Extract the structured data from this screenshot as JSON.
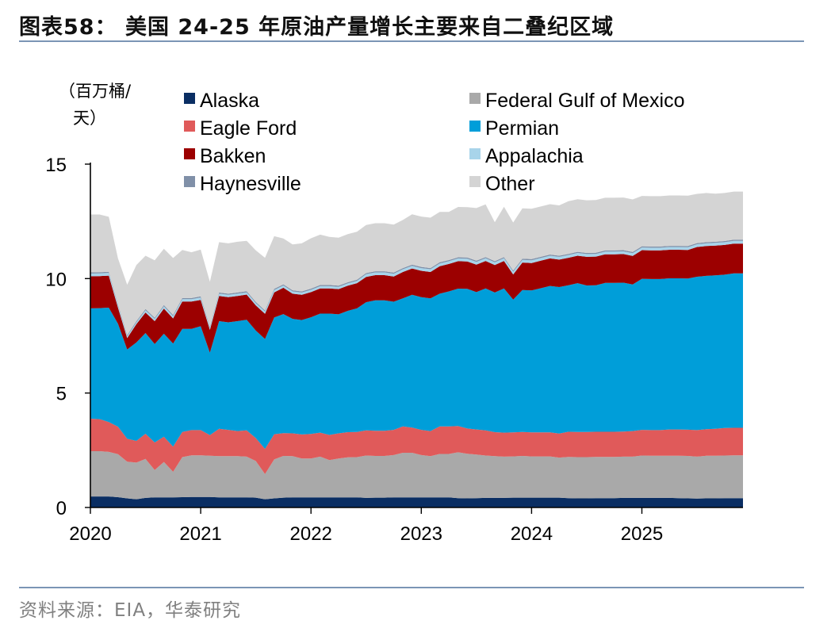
{
  "page": {
    "title": "图表58：  美国 24-25 年原油产量增长主要来自二叠纪区域",
    "source": "资料来源：EIA，华泰研究"
  },
  "chart_data": {
    "type": "area",
    "stacked": true,
    "title": "美国 24-25 年原油产量增长主要来自二叠纪区域",
    "ylabel": "（百万桶/天）",
    "ylabel_lines": [
      "（百万桶/",
      "天）"
    ],
    "xlabel": "",
    "ylim": [
      0,
      15
    ],
    "yticks": [
      0,
      5,
      10,
      15
    ],
    "ytick_labels": [
      "0",
      "5",
      "10",
      "15"
    ],
    "xticks": [
      "2020",
      "2021",
      "2022",
      "2023",
      "2024",
      "2025"
    ],
    "periods": 72,
    "x_start": "2020-01",
    "x_end": "2025-12",
    "legend_position": "top",
    "legend_order": [
      "Alaska",
      "Federal Gulf of Mexico",
      "Eagle Ford",
      "Permian",
      "Bakken",
      "Appalachia",
      "Haynesville",
      "Other"
    ],
    "series": [
      {
        "name": "Alaska",
        "color": "#0a2e63",
        "values": [
          0.48,
          0.48,
          0.48,
          0.45,
          0.4,
          0.36,
          0.42,
          0.44,
          0.44,
          0.44,
          0.45,
          0.46,
          0.46,
          0.46,
          0.44,
          0.44,
          0.44,
          0.44,
          0.43,
          0.36,
          0.4,
          0.43,
          0.44,
          0.44,
          0.44,
          0.44,
          0.44,
          0.44,
          0.44,
          0.44,
          0.42,
          0.43,
          0.43,
          0.44,
          0.44,
          0.44,
          0.44,
          0.44,
          0.44,
          0.44,
          0.41,
          0.4,
          0.41,
          0.42,
          0.42,
          0.42,
          0.43,
          0.43,
          0.43,
          0.43,
          0.43,
          0.43,
          0.41,
          0.4,
          0.4,
          0.41,
          0.41,
          0.41,
          0.42,
          0.42,
          0.42,
          0.42,
          0.42,
          0.42,
          0.41,
          0.4,
          0.39,
          0.4,
          0.4,
          0.41,
          0.41,
          0.41
        ]
      },
      {
        "name": "Federal Gulf of Mexico",
        "color": "#a9a9a9",
        "values": [
          1.98,
          1.98,
          1.95,
          1.88,
          1.6,
          1.6,
          1.7,
          1.2,
          1.55,
          1.12,
          1.75,
          1.82,
          1.82,
          1.8,
          1.8,
          1.8,
          1.8,
          1.78,
          1.6,
          1.1,
          1.7,
          1.82,
          1.8,
          1.7,
          1.7,
          1.78,
          1.63,
          1.7,
          1.75,
          1.76,
          1.85,
          1.82,
          1.82,
          1.85,
          1.95,
          1.95,
          1.85,
          1.8,
          1.9,
          1.9,
          2.0,
          1.95,
          1.9,
          1.85,
          1.82,
          1.8,
          1.8,
          1.82,
          1.8,
          1.8,
          1.8,
          1.75,
          1.8,
          1.8,
          1.8,
          1.8,
          1.8,
          1.8,
          1.8,
          1.8,
          1.85,
          1.84,
          1.84,
          1.84,
          1.85,
          1.85,
          1.83,
          1.86,
          1.86,
          1.86,
          1.87,
          1.87
        ]
      },
      {
        "name": "Eagle Ford",
        "color": "#e05a5a",
        "values": [
          1.42,
          1.4,
          1.3,
          1.2,
          1.0,
          0.95,
          1.1,
          1.2,
          1.1,
          1.1,
          1.1,
          1.1,
          1.1,
          0.9,
          1.2,
          1.15,
          1.1,
          1.15,
          1.0,
          1.1,
          1.1,
          1.0,
          1.0,
          1.05,
          1.07,
          1.05,
          1.1,
          1.1,
          1.1,
          1.1,
          1.1,
          1.1,
          1.1,
          1.1,
          1.15,
          1.1,
          1.1,
          1.1,
          1.2,
          1.2,
          1.15,
          1.1,
          1.1,
          1.1,
          1.05,
          1.05,
          1.05,
          1.05,
          1.05,
          1.05,
          1.05,
          1.05,
          1.1,
          1.1,
          1.1,
          1.1,
          1.1,
          1.1,
          1.1,
          1.12,
          1.12,
          1.12,
          1.12,
          1.15,
          1.15,
          1.15,
          1.16,
          1.16,
          1.18,
          1.2,
          1.2,
          1.2
        ]
      },
      {
        "name": "Permian",
        "color": "#009ed9",
        "values": [
          4.82,
          4.85,
          5.0,
          4.5,
          3.9,
          4.3,
          4.4,
          4.3,
          4.5,
          4.5,
          4.5,
          4.42,
          4.54,
          3.6,
          4.7,
          4.7,
          4.8,
          4.83,
          4.7,
          4.8,
          5.1,
          5.2,
          5.0,
          5.0,
          5.1,
          5.2,
          5.3,
          5.2,
          5.3,
          5.4,
          5.6,
          5.7,
          5.7,
          5.6,
          5.6,
          5.8,
          5.8,
          5.8,
          5.8,
          5.9,
          6.0,
          6.1,
          6.0,
          6.2,
          6.1,
          6.3,
          5.8,
          6.2,
          6.2,
          6.3,
          6.4,
          6.4,
          6.4,
          6.5,
          6.4,
          6.4,
          6.5,
          6.5,
          6.5,
          6.4,
          6.6,
          6.6,
          6.6,
          6.6,
          6.6,
          6.6,
          6.7,
          6.7,
          6.7,
          6.7,
          6.75,
          6.75
        ]
      },
      {
        "name": "Bakken",
        "color": "#9c0000",
        "values": [
          1.4,
          1.4,
          1.4,
          0.7,
          0.5,
          0.8,
          0.9,
          1.0,
          1.1,
          1.1,
          1.2,
          1.2,
          1.15,
          1.0,
          1.1,
          1.1,
          1.1,
          1.1,
          1.1,
          1.1,
          1.1,
          1.15,
          1.1,
          1.1,
          1.1,
          1.1,
          1.1,
          1.1,
          1.1,
          1.1,
          1.1,
          1.1,
          1.1,
          1.1,
          1.15,
          1.15,
          1.15,
          1.15,
          1.2,
          1.2,
          1.2,
          1.2,
          1.2,
          1.2,
          1.2,
          1.2,
          1.1,
          1.2,
          1.2,
          1.2,
          1.2,
          1.2,
          1.2,
          1.2,
          1.25,
          1.25,
          1.25,
          1.25,
          1.25,
          1.25,
          1.25,
          1.25,
          1.25,
          1.25,
          1.25,
          1.25,
          1.3,
          1.3,
          1.3,
          1.3,
          1.3,
          1.3
        ]
      },
      {
        "name": "Appalachia",
        "color": "#a8d4ea",
        "values": [
          0.12,
          0.12,
          0.12,
          0.1,
          0.08,
          0.08,
          0.1,
          0.1,
          0.1,
          0.1,
          0.1,
          0.1,
          0.1,
          0.1,
          0.1,
          0.1,
          0.1,
          0.1,
          0.1,
          0.1,
          0.1,
          0.1,
          0.1,
          0.1,
          0.1,
          0.1,
          0.1,
          0.1,
          0.1,
          0.1,
          0.12,
          0.12,
          0.12,
          0.12,
          0.12,
          0.12,
          0.12,
          0.12,
          0.12,
          0.12,
          0.12,
          0.12,
          0.12,
          0.12,
          0.12,
          0.12,
          0.12,
          0.12,
          0.12,
          0.12,
          0.12,
          0.12,
          0.12,
          0.12,
          0.12,
          0.12,
          0.12,
          0.12,
          0.12,
          0.12,
          0.12,
          0.12,
          0.12,
          0.12,
          0.12,
          0.12,
          0.12,
          0.12,
          0.12,
          0.12,
          0.12,
          0.12
        ]
      },
      {
        "name": "Haynesville",
        "color": "#8090a8",
        "values": [
          0.05,
          0.05,
          0.05,
          0.05,
          0.05,
          0.05,
          0.05,
          0.05,
          0.05,
          0.05,
          0.05,
          0.05,
          0.05,
          0.05,
          0.05,
          0.05,
          0.05,
          0.05,
          0.05,
          0.05,
          0.05,
          0.05,
          0.05,
          0.05,
          0.05,
          0.05,
          0.05,
          0.05,
          0.05,
          0.05,
          0.05,
          0.05,
          0.05,
          0.05,
          0.05,
          0.05,
          0.05,
          0.05,
          0.05,
          0.05,
          0.05,
          0.05,
          0.05,
          0.05,
          0.05,
          0.05,
          0.05,
          0.05,
          0.05,
          0.05,
          0.05,
          0.05,
          0.05,
          0.05,
          0.05,
          0.05,
          0.05,
          0.05,
          0.05,
          0.05,
          0.05,
          0.05,
          0.05,
          0.05,
          0.05,
          0.05,
          0.05,
          0.05,
          0.05,
          0.05,
          0.05,
          0.05
        ]
      },
      {
        "name": "Other",
        "color": "#d4d4d4",
        "values": [
          2.53,
          2.52,
          2.4,
          2.0,
          2.2,
          2.45,
          2.33,
          2.51,
          2.46,
          2.49,
          2.1,
          2.0,
          2.05,
          1.95,
          2.2,
          2.2,
          2.22,
          2.2,
          2.25,
          2.3,
          2.3,
          2.0,
          2.0,
          2.1,
          2.2,
          2.2,
          2.1,
          2.1,
          2.1,
          2.1,
          2.1,
          2.1,
          2.1,
          2.1,
          2.1,
          2.2,
          2.2,
          2.2,
          2.2,
          2.1,
          2.2,
          2.2,
          2.3,
          2.3,
          1.7,
          2.2,
          2.1,
          2.2,
          2.2,
          2.2,
          2.2,
          2.2,
          2.3,
          2.3,
          2.3,
          2.3,
          2.3,
          2.3,
          2.3,
          2.3,
          2.2,
          2.2,
          2.2,
          2.2,
          2.2,
          2.2,
          2.15,
          2.15,
          2.1,
          2.1,
          2.1,
          2.1
        ]
      }
    ]
  }
}
